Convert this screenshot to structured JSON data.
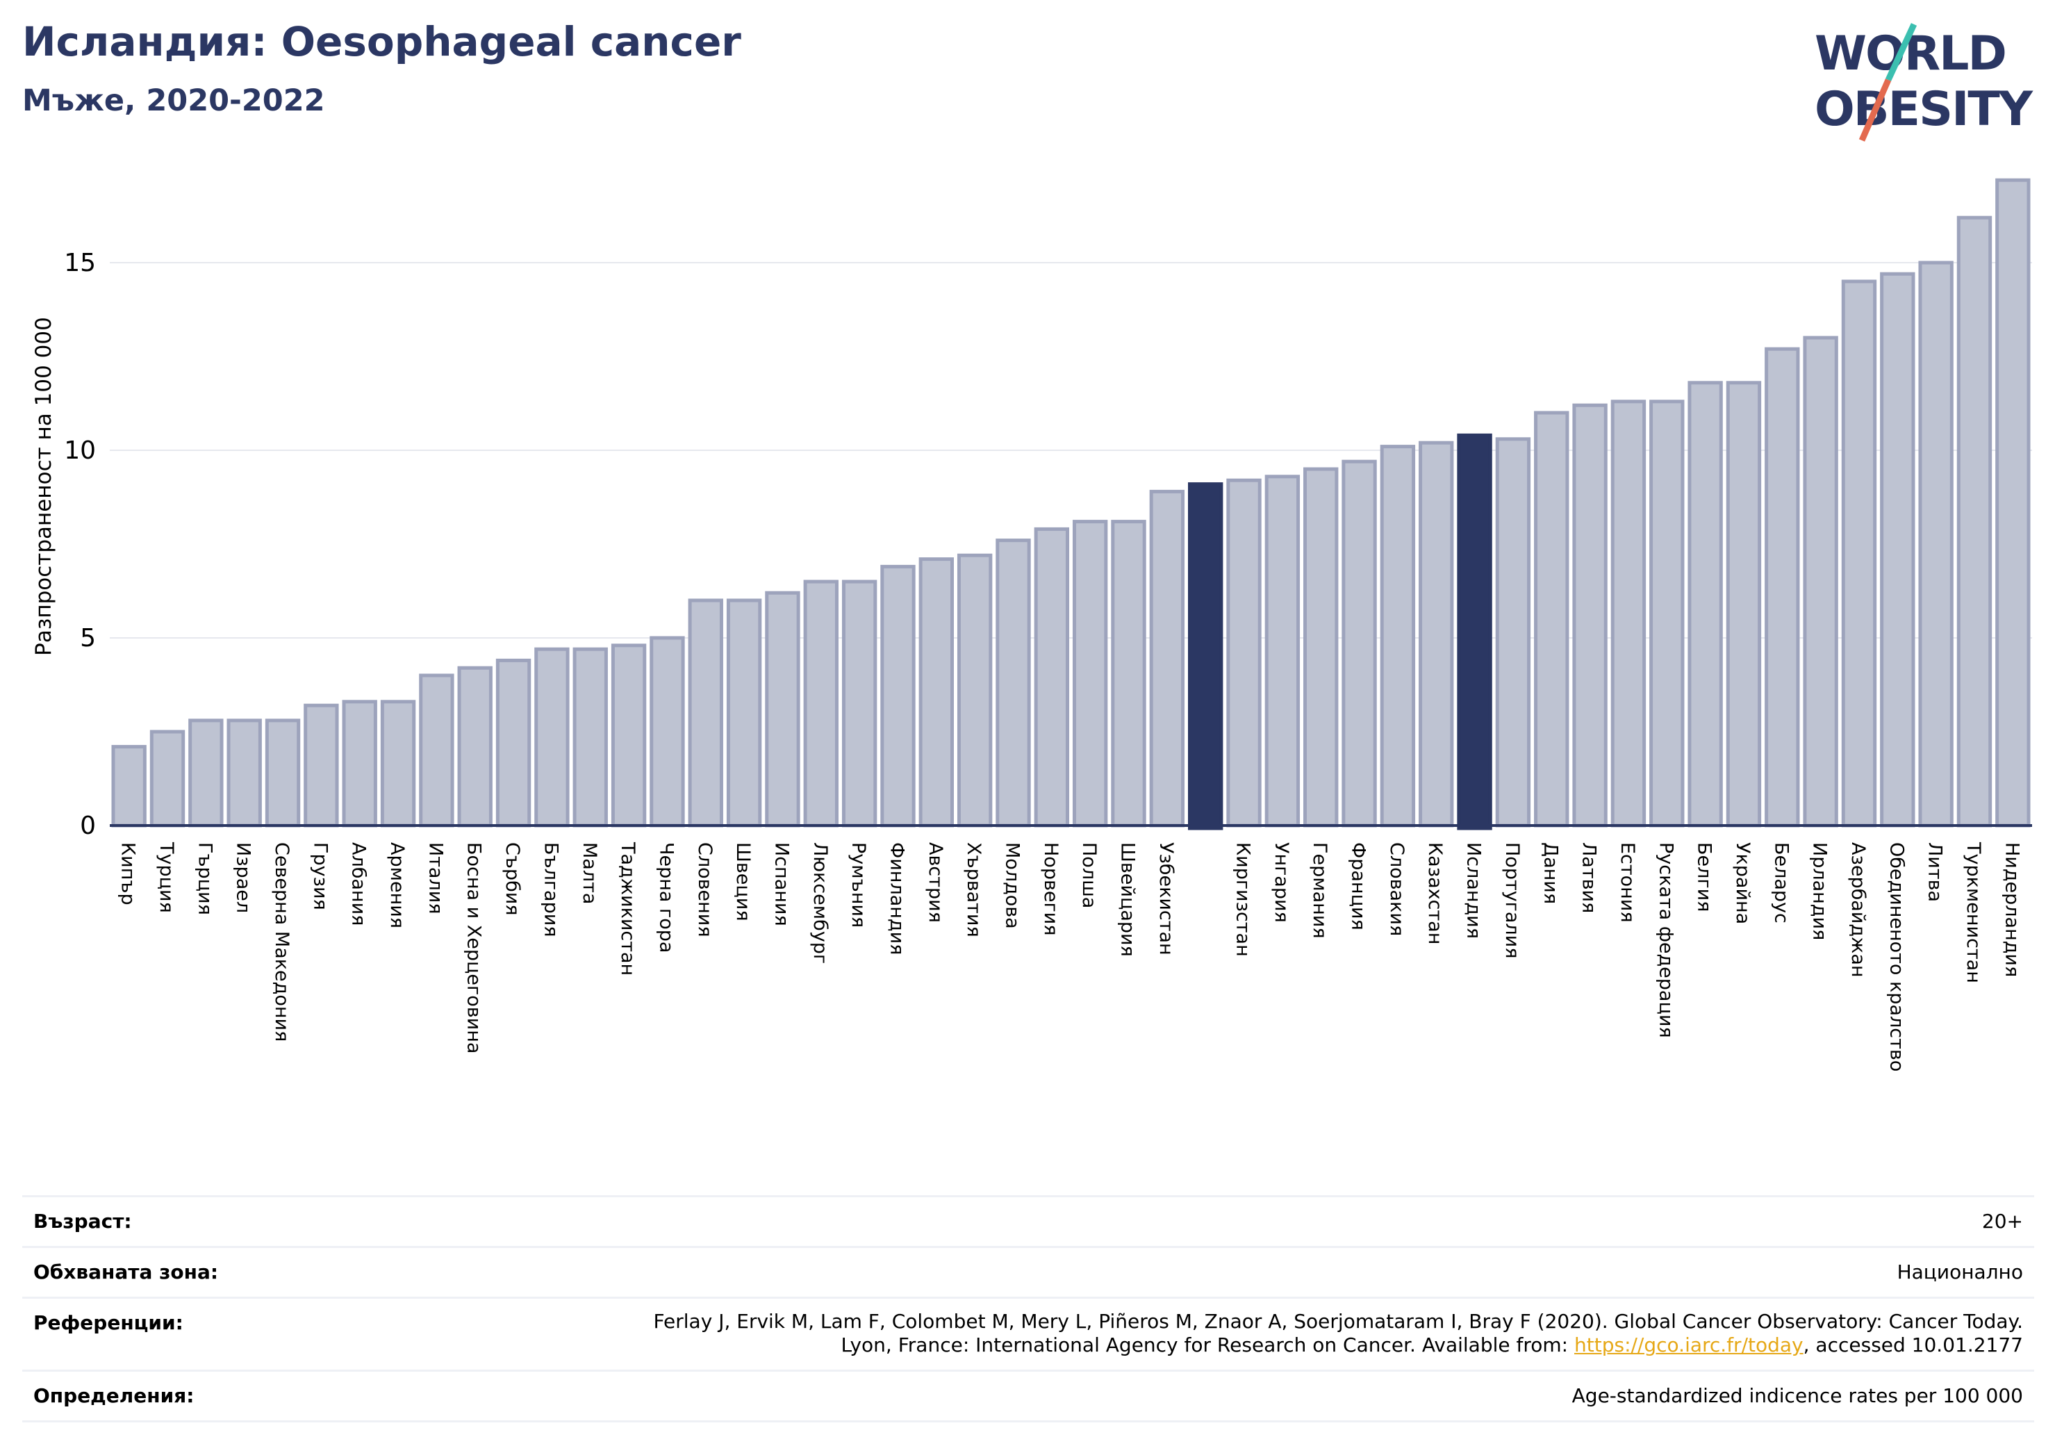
{
  "header": {
    "title": "Исландия: Oesophageal cancer",
    "subtitle": "Мъже, 2020-2022"
  },
  "logo": {
    "line1": "WORLD",
    "line2": "OBESITY",
    "text_color": "#2b3763",
    "slash_colors": [
      "#3bbfb0",
      "#e36a4f"
    ]
  },
  "colors": {
    "bar": "#bec3d2",
    "bar_stroke": "#9da3bc",
    "highlight": "#2b3763",
    "axis": "#2b3763",
    "grid": "#e6e8ee"
  },
  "chart_data": {
    "type": "bar",
    "ylabel": "Разпространеност  на 100 000",
    "ylim": [
      0,
      18
    ],
    "yticks": [
      0,
      5,
      10,
      15
    ],
    "categories": [
      "Кипър",
      "Турция",
      "Гърция",
      "Израел",
      "Северна Македония",
      "Грузия",
      "Албания",
      "Армения",
      "Италия",
      "Босна и Херцеговина",
      "Сърбия",
      "България",
      "Малта",
      "Таджикистан",
      "Черна гора",
      "Словения",
      "Швеция",
      "Испания",
      "Люксембург",
      "Румъния",
      "Финландия",
      "Австрия",
      "Хърватия",
      "Молдова",
      "Норвегия",
      "Полша",
      "Швейцария",
      "Узбекистан",
      "",
      "Киргизстан",
      "Унгария",
      "Германия",
      "Франция",
      "Словакия",
      "Казахстан",
      "Исландия",
      "Португалия",
      "Дания",
      "Латвия",
      "Естония",
      "Руската федерация",
      "Белгия",
      "Украйна",
      "Беларус",
      "Ирландия",
      "Азербайджан",
      "Обединеното кралство",
      "Литва",
      "Туркменистан",
      "Нидерландия"
    ],
    "values": [
      2.1,
      2.5,
      2.8,
      2.8,
      2.8,
      3.2,
      3.3,
      3.3,
      4.0,
      4.2,
      4.4,
      4.7,
      4.7,
      4.8,
      5.0,
      6.0,
      6.0,
      6.2,
      6.5,
      6.5,
      6.9,
      7.1,
      7.2,
      7.6,
      7.9,
      8.1,
      8.1,
      8.9,
      9.1,
      9.2,
      9.3,
      9.5,
      9.7,
      10.1,
      10.2,
      10.4,
      10.3,
      11.0,
      11.2,
      11.3,
      11.3,
      11.8,
      11.8,
      12.7,
      13.0,
      14.5,
      14.7,
      15.0,
      16.2,
      17.2
    ],
    "highlighted": [
      28,
      35
    ]
  },
  "info": [
    {
      "key": "Възраст:",
      "value": "20+"
    },
    {
      "key": "Обхваната зона:",
      "value": "Национално"
    },
    {
      "key": "Референции:",
      "value_line1": "Ferlay J, Ervik M, Lam F, Colombet M, Mery L, Piñeros M, Znaor A, Soerjomataram I, Bray F (2020). Global Cancer Observatory: Cancer Today.",
      "value_line2_pre": "Lyon, France: International Agency for Research on Cancer. Available from: ",
      "link": "https://gco.iarc.fr/today",
      "value_line2_post": ", accessed 10.01.2177"
    },
    {
      "key": "Определения:",
      "value": "Age-standardized indicence rates per 100 000"
    }
  ]
}
